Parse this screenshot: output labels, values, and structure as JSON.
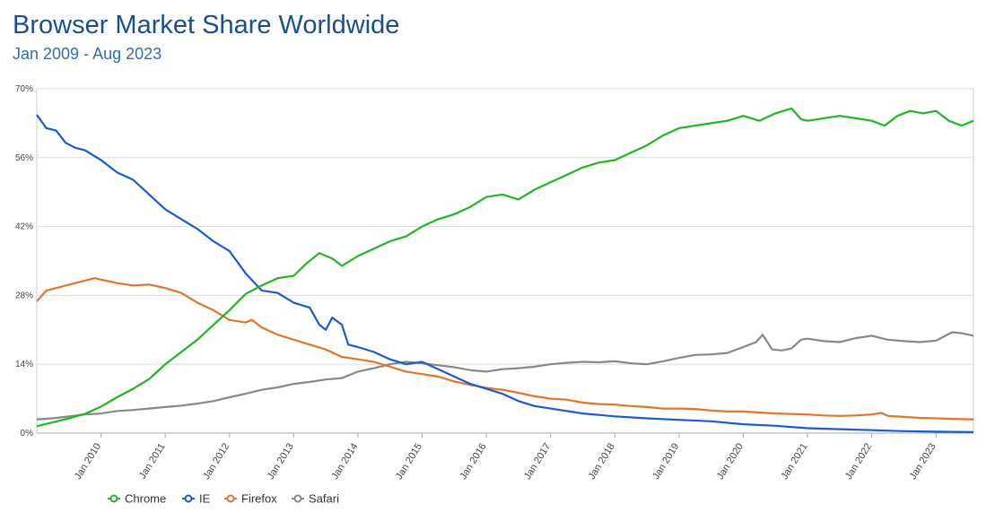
{
  "chart_data": {
    "type": "line",
    "title": "Browser Market Share Worldwide",
    "subtitle": "Jan 2009 - Aug 2023",
    "xlabel": "",
    "ylabel": "",
    "ylim": [
      0,
      70
    ],
    "y_ticks": [
      "0%",
      "14%",
      "28%",
      "42%",
      "56%",
      "70%"
    ],
    "y_tick_values": [
      0,
      14,
      28,
      42,
      56,
      70
    ],
    "x_ticks": [
      "Jan 2010",
      "Jan 2011",
      "Jan 2012",
      "Jan 2013",
      "Jan 2014",
      "Jan 2015",
      "Jan 2016",
      "Jan 2017",
      "Jan 2018",
      "Jan 2019",
      "Jan 2020",
      "Jan 2021",
      "Jan 2022",
      "Jan 2023"
    ],
    "x_tick_values": [
      2010,
      2011,
      2012,
      2013,
      2014,
      2015,
      2016,
      2017,
      2018,
      2019,
      2020,
      2021,
      2022,
      2023
    ],
    "xlim": [
      2009.0,
      2023.583
    ],
    "grid": true,
    "legend_position": "bottom-left",
    "series": [
      {
        "name": "Chrome",
        "color": "#22b522",
        "points": [
          [
            2009.0,
            1.4
          ],
          [
            2009.25,
            2.2
          ],
          [
            2009.5,
            3.0
          ],
          [
            2009.75,
            3.9
          ],
          [
            2010.0,
            5.4
          ],
          [
            2010.25,
            7.3
          ],
          [
            2010.5,
            9.0
          ],
          [
            2010.75,
            11.0
          ],
          [
            2011.0,
            14.0
          ],
          [
            2011.25,
            16.5
          ],
          [
            2011.5,
            19.0
          ],
          [
            2011.75,
            22.0
          ],
          [
            2012.0,
            25.0
          ],
          [
            2012.25,
            28.3
          ],
          [
            2012.5,
            30.0
          ],
          [
            2012.75,
            31.5
          ],
          [
            2013.0,
            32.0
          ],
          [
            2013.2,
            34.5
          ],
          [
            2013.4,
            36.6
          ],
          [
            2013.6,
            35.5
          ],
          [
            2013.75,
            34.0
          ],
          [
            2014.0,
            36.0
          ],
          [
            2014.25,
            37.5
          ],
          [
            2014.5,
            39.0
          ],
          [
            2014.75,
            40.0
          ],
          [
            2015.0,
            42.0
          ],
          [
            2015.25,
            43.5
          ],
          [
            2015.5,
            44.5
          ],
          [
            2015.75,
            46.0
          ],
          [
            2016.0,
            48.0
          ],
          [
            2016.25,
            48.5
          ],
          [
            2016.5,
            47.5
          ],
          [
            2016.75,
            49.5
          ],
          [
            2017.0,
            51.0
          ],
          [
            2017.25,
            52.5
          ],
          [
            2017.5,
            54.0
          ],
          [
            2017.75,
            55.0
          ],
          [
            2018.0,
            55.5
          ],
          [
            2018.25,
            57.0
          ],
          [
            2018.5,
            58.5
          ],
          [
            2018.75,
            60.5
          ],
          [
            2019.0,
            62.0
          ],
          [
            2019.25,
            62.5
          ],
          [
            2019.5,
            63.0
          ],
          [
            2019.75,
            63.5
          ],
          [
            2020.0,
            64.5
          ],
          [
            2020.25,
            63.5
          ],
          [
            2020.5,
            65.0
          ],
          [
            2020.75,
            66.0
          ],
          [
            2020.9,
            63.8
          ],
          [
            2021.0,
            63.5
          ],
          [
            2021.25,
            64.0
          ],
          [
            2021.5,
            64.5
          ],
          [
            2021.75,
            64.0
          ],
          [
            2022.0,
            63.5
          ],
          [
            2022.2,
            62.5
          ],
          [
            2022.4,
            64.5
          ],
          [
            2022.6,
            65.5
          ],
          [
            2022.8,
            65.0
          ],
          [
            2023.0,
            65.5
          ],
          [
            2023.2,
            63.5
          ],
          [
            2023.4,
            62.5
          ],
          [
            2023.583,
            63.5
          ]
        ]
      },
      {
        "name": "IE",
        "color": "#1a5ccc",
        "points": [
          [
            2009.0,
            64.7
          ],
          [
            2009.15,
            62.0
          ],
          [
            2009.3,
            61.5
          ],
          [
            2009.45,
            59.0
          ],
          [
            2009.6,
            58.0
          ],
          [
            2009.75,
            57.5
          ],
          [
            2010.0,
            55.5
          ],
          [
            2010.25,
            53.0
          ],
          [
            2010.5,
            51.5
          ],
          [
            2010.75,
            48.5
          ],
          [
            2011.0,
            45.5
          ],
          [
            2011.25,
            43.5
          ],
          [
            2011.5,
            41.5
          ],
          [
            2011.75,
            39.0
          ],
          [
            2012.0,
            37.0
          ],
          [
            2012.25,
            32.5
          ],
          [
            2012.5,
            29.0
          ],
          [
            2012.75,
            28.5
          ],
          [
            2013.0,
            26.5
          ],
          [
            2013.25,
            25.5
          ],
          [
            2013.4,
            22.0
          ],
          [
            2013.5,
            21.0
          ],
          [
            2013.6,
            23.5
          ],
          [
            2013.75,
            22.0
          ],
          [
            2013.85,
            18.0
          ],
          [
            2014.0,
            17.5
          ],
          [
            2014.25,
            16.5
          ],
          [
            2014.5,
            15.0
          ],
          [
            2014.75,
            14.0
          ],
          [
            2015.0,
            14.5
          ],
          [
            2015.25,
            13.0
          ],
          [
            2015.5,
            11.5
          ],
          [
            2015.75,
            10.0
          ],
          [
            2016.0,
            9.0
          ],
          [
            2016.25,
            8.0
          ],
          [
            2016.5,
            6.5
          ],
          [
            2016.75,
            5.5
          ],
          [
            2017.0,
            5.0
          ],
          [
            2017.25,
            4.5
          ],
          [
            2017.5,
            4.0
          ],
          [
            2017.75,
            3.7
          ],
          [
            2018.0,
            3.4
          ],
          [
            2018.5,
            3.0
          ],
          [
            2019.0,
            2.7
          ],
          [
            2019.5,
            2.4
          ],
          [
            2020.0,
            1.8
          ],
          [
            2020.5,
            1.5
          ],
          [
            2021.0,
            1.0
          ],
          [
            2021.5,
            0.8
          ],
          [
            2022.0,
            0.6
          ],
          [
            2022.5,
            0.4
          ],
          [
            2023.0,
            0.3
          ],
          [
            2023.583,
            0.2
          ]
        ]
      },
      {
        "name": "Firefox",
        "color": "#e0762a",
        "points": [
          [
            2009.0,
            26.8
          ],
          [
            2009.15,
            29.0
          ],
          [
            2009.3,
            29.5
          ],
          [
            2009.45,
            30.0
          ],
          [
            2009.6,
            30.5
          ],
          [
            2009.75,
            31.0
          ],
          [
            2009.9,
            31.5
          ],
          [
            2010.0,
            31.2
          ],
          [
            2010.25,
            30.5
          ],
          [
            2010.5,
            30.0
          ],
          [
            2010.75,
            30.2
          ],
          [
            2011.0,
            29.5
          ],
          [
            2011.25,
            28.5
          ],
          [
            2011.5,
            26.5
          ],
          [
            2011.75,
            25.0
          ],
          [
            2012.0,
            23.0
          ],
          [
            2012.25,
            22.5
          ],
          [
            2012.35,
            23.0
          ],
          [
            2012.5,
            21.5
          ],
          [
            2012.75,
            20.0
          ],
          [
            2013.0,
            19.0
          ],
          [
            2013.25,
            18.0
          ],
          [
            2013.5,
            17.0
          ],
          [
            2013.75,
            15.5
          ],
          [
            2014.0,
            15.0
          ],
          [
            2014.25,
            14.5
          ],
          [
            2014.5,
            13.5
          ],
          [
            2014.75,
            12.5
          ],
          [
            2015.0,
            12.0
          ],
          [
            2015.25,
            11.5
          ],
          [
            2015.5,
            10.5
          ],
          [
            2015.75,
            9.8
          ],
          [
            2016.0,
            9.2
          ],
          [
            2016.25,
            8.8
          ],
          [
            2016.5,
            8.2
          ],
          [
            2016.75,
            7.5
          ],
          [
            2017.0,
            7.0
          ],
          [
            2017.25,
            6.8
          ],
          [
            2017.5,
            6.2
          ],
          [
            2017.75,
            5.9
          ],
          [
            2018.0,
            5.8
          ],
          [
            2018.25,
            5.5
          ],
          [
            2018.5,
            5.3
          ],
          [
            2018.75,
            5.0
          ],
          [
            2019.0,
            5.0
          ],
          [
            2019.25,
            4.9
          ],
          [
            2019.5,
            4.6
          ],
          [
            2019.75,
            4.4
          ],
          [
            2020.0,
            4.4
          ],
          [
            2020.25,
            4.2
          ],
          [
            2020.5,
            4.0
          ],
          [
            2020.75,
            3.9
          ],
          [
            2021.0,
            3.8
          ],
          [
            2021.25,
            3.6
          ],
          [
            2021.5,
            3.5
          ],
          [
            2021.75,
            3.6
          ],
          [
            2022.0,
            3.8
          ],
          [
            2022.15,
            4.1
          ],
          [
            2022.25,
            3.5
          ],
          [
            2022.5,
            3.3
          ],
          [
            2022.75,
            3.1
          ],
          [
            2023.0,
            3.0
          ],
          [
            2023.25,
            2.9
          ],
          [
            2023.583,
            2.8
          ]
        ]
      },
      {
        "name": "Safari",
        "color": "#888888",
        "points": [
          [
            2009.0,
            2.8
          ],
          [
            2009.25,
            3.0
          ],
          [
            2009.5,
            3.4
          ],
          [
            2009.75,
            3.8
          ],
          [
            2010.0,
            4.0
          ],
          [
            2010.25,
            4.5
          ],
          [
            2010.5,
            4.7
          ],
          [
            2010.75,
            5.0
          ],
          [
            2011.0,
            5.3
          ],
          [
            2011.25,
            5.6
          ],
          [
            2011.5,
            6.0
          ],
          [
            2011.75,
            6.5
          ],
          [
            2012.0,
            7.3
          ],
          [
            2012.25,
            8.0
          ],
          [
            2012.5,
            8.8
          ],
          [
            2012.75,
            9.3
          ],
          [
            2013.0,
            10.0
          ],
          [
            2013.25,
            10.4
          ],
          [
            2013.5,
            10.9
          ],
          [
            2013.75,
            11.2
          ],
          [
            2014.0,
            12.5
          ],
          [
            2014.25,
            13.2
          ],
          [
            2014.5,
            14.0
          ],
          [
            2014.75,
            14.5
          ],
          [
            2015.0,
            14.2
          ],
          [
            2015.25,
            13.8
          ],
          [
            2015.5,
            13.4
          ],
          [
            2015.75,
            12.8
          ],
          [
            2016.0,
            12.5
          ],
          [
            2016.25,
            13.0
          ],
          [
            2016.5,
            13.2
          ],
          [
            2016.75,
            13.5
          ],
          [
            2017.0,
            14.0
          ],
          [
            2017.25,
            14.3
          ],
          [
            2017.5,
            14.5
          ],
          [
            2017.75,
            14.4
          ],
          [
            2018.0,
            14.6
          ],
          [
            2018.25,
            14.2
          ],
          [
            2018.5,
            14.0
          ],
          [
            2018.75,
            14.6
          ],
          [
            2019.0,
            15.3
          ],
          [
            2019.25,
            15.9
          ],
          [
            2019.5,
            16.0
          ],
          [
            2019.75,
            16.3
          ],
          [
            2020.0,
            17.5
          ],
          [
            2020.2,
            18.5
          ],
          [
            2020.3,
            20.0
          ],
          [
            2020.45,
            17.0
          ],
          [
            2020.6,
            16.8
          ],
          [
            2020.75,
            17.2
          ],
          [
            2020.9,
            19.0
          ],
          [
            2021.0,
            19.2
          ],
          [
            2021.25,
            18.7
          ],
          [
            2021.5,
            18.5
          ],
          [
            2021.75,
            19.3
          ],
          [
            2022.0,
            19.8
          ],
          [
            2022.25,
            19.0
          ],
          [
            2022.5,
            18.7
          ],
          [
            2022.75,
            18.5
          ],
          [
            2023.0,
            18.8
          ],
          [
            2023.25,
            20.5
          ],
          [
            2023.4,
            20.3
          ],
          [
            2023.583,
            19.8
          ]
        ]
      }
    ]
  }
}
